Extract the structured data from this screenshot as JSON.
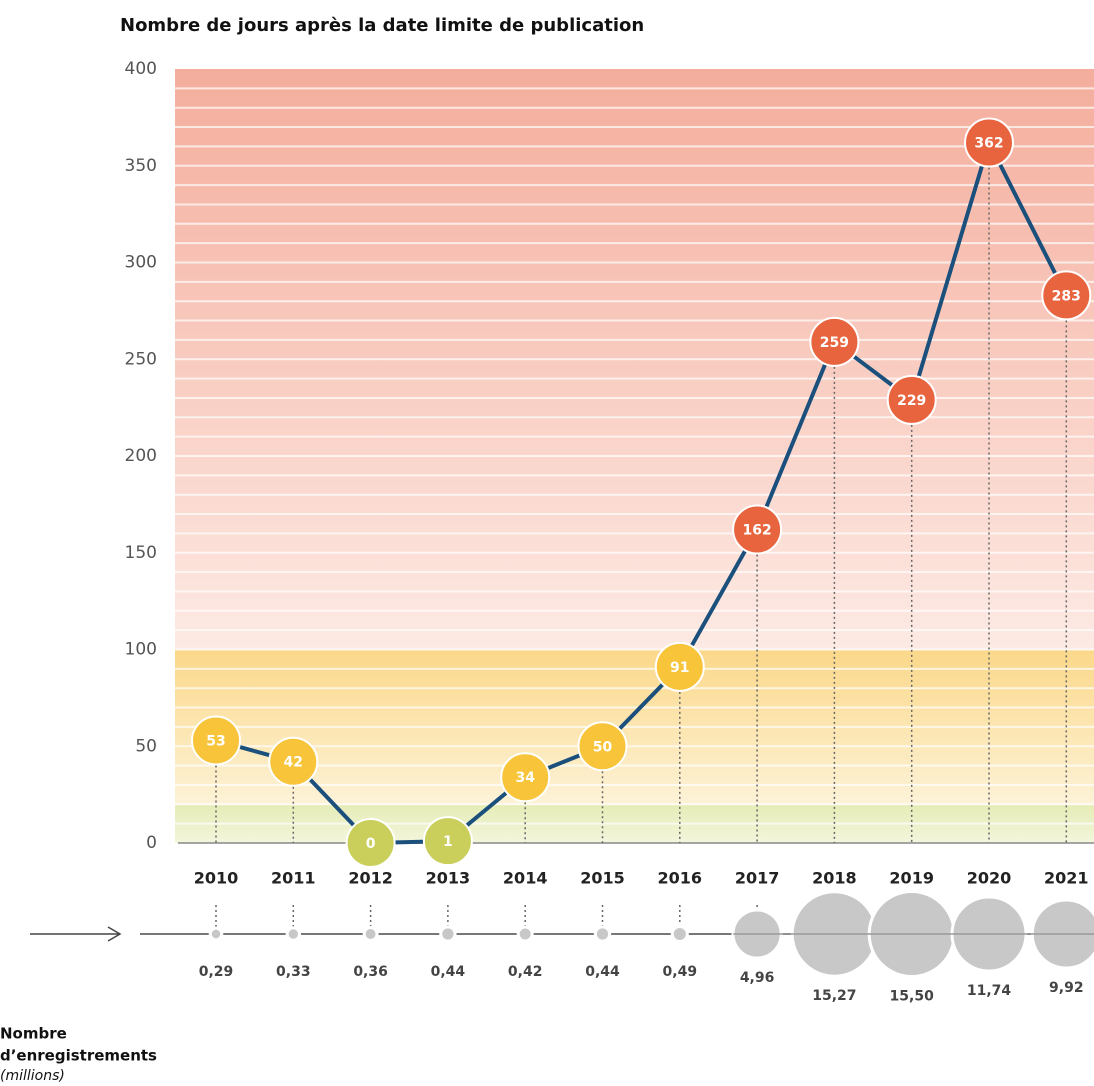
{
  "chart_data": [
    {
      "type": "line",
      "title": "Nombre de jours après la date limite de publication",
      "categories": [
        "2010",
        "2011",
        "2012",
        "2013",
        "2014",
        "2015",
        "2016",
        "2017",
        "2018",
        "2019",
        "2020",
        "2021"
      ],
      "values": [
        53,
        42,
        0,
        1,
        34,
        50,
        91,
        162,
        259,
        229,
        362,
        283
      ],
      "point_colors": [
        "#f7c43a",
        "#f7c43a",
        "#c9cf5a",
        "#c9cf5a",
        "#f7c43a",
        "#f7c43a",
        "#f7c43a",
        "#e8643f",
        "#e8643f",
        "#e8643f",
        "#e8643f",
        "#e8643f"
      ],
      "color": "#1b4f7c",
      "ylim": [
        0,
        400
      ],
      "yticks": [
        0,
        50,
        100,
        150,
        200,
        250,
        300,
        350,
        400
      ]
    },
    {
      "type": "bubble",
      "label": [
        "Nombre",
        "d’enregistrements"
      ],
      "sublabel": "(millions)",
      "values": [
        0.29,
        0.33,
        0.36,
        0.44,
        0.42,
        0.44,
        0.49,
        4.96,
        15.27,
        15.5,
        11.74,
        9.92
      ],
      "value_labels": [
        "0,29",
        "0,33",
        "0,36",
        "0,44",
        "0,42",
        "0,44",
        "0,49",
        "4,96",
        "15,27",
        "15,50",
        "11,74",
        "9,92"
      ],
      "color": "#c8c8c8"
    }
  ]
}
